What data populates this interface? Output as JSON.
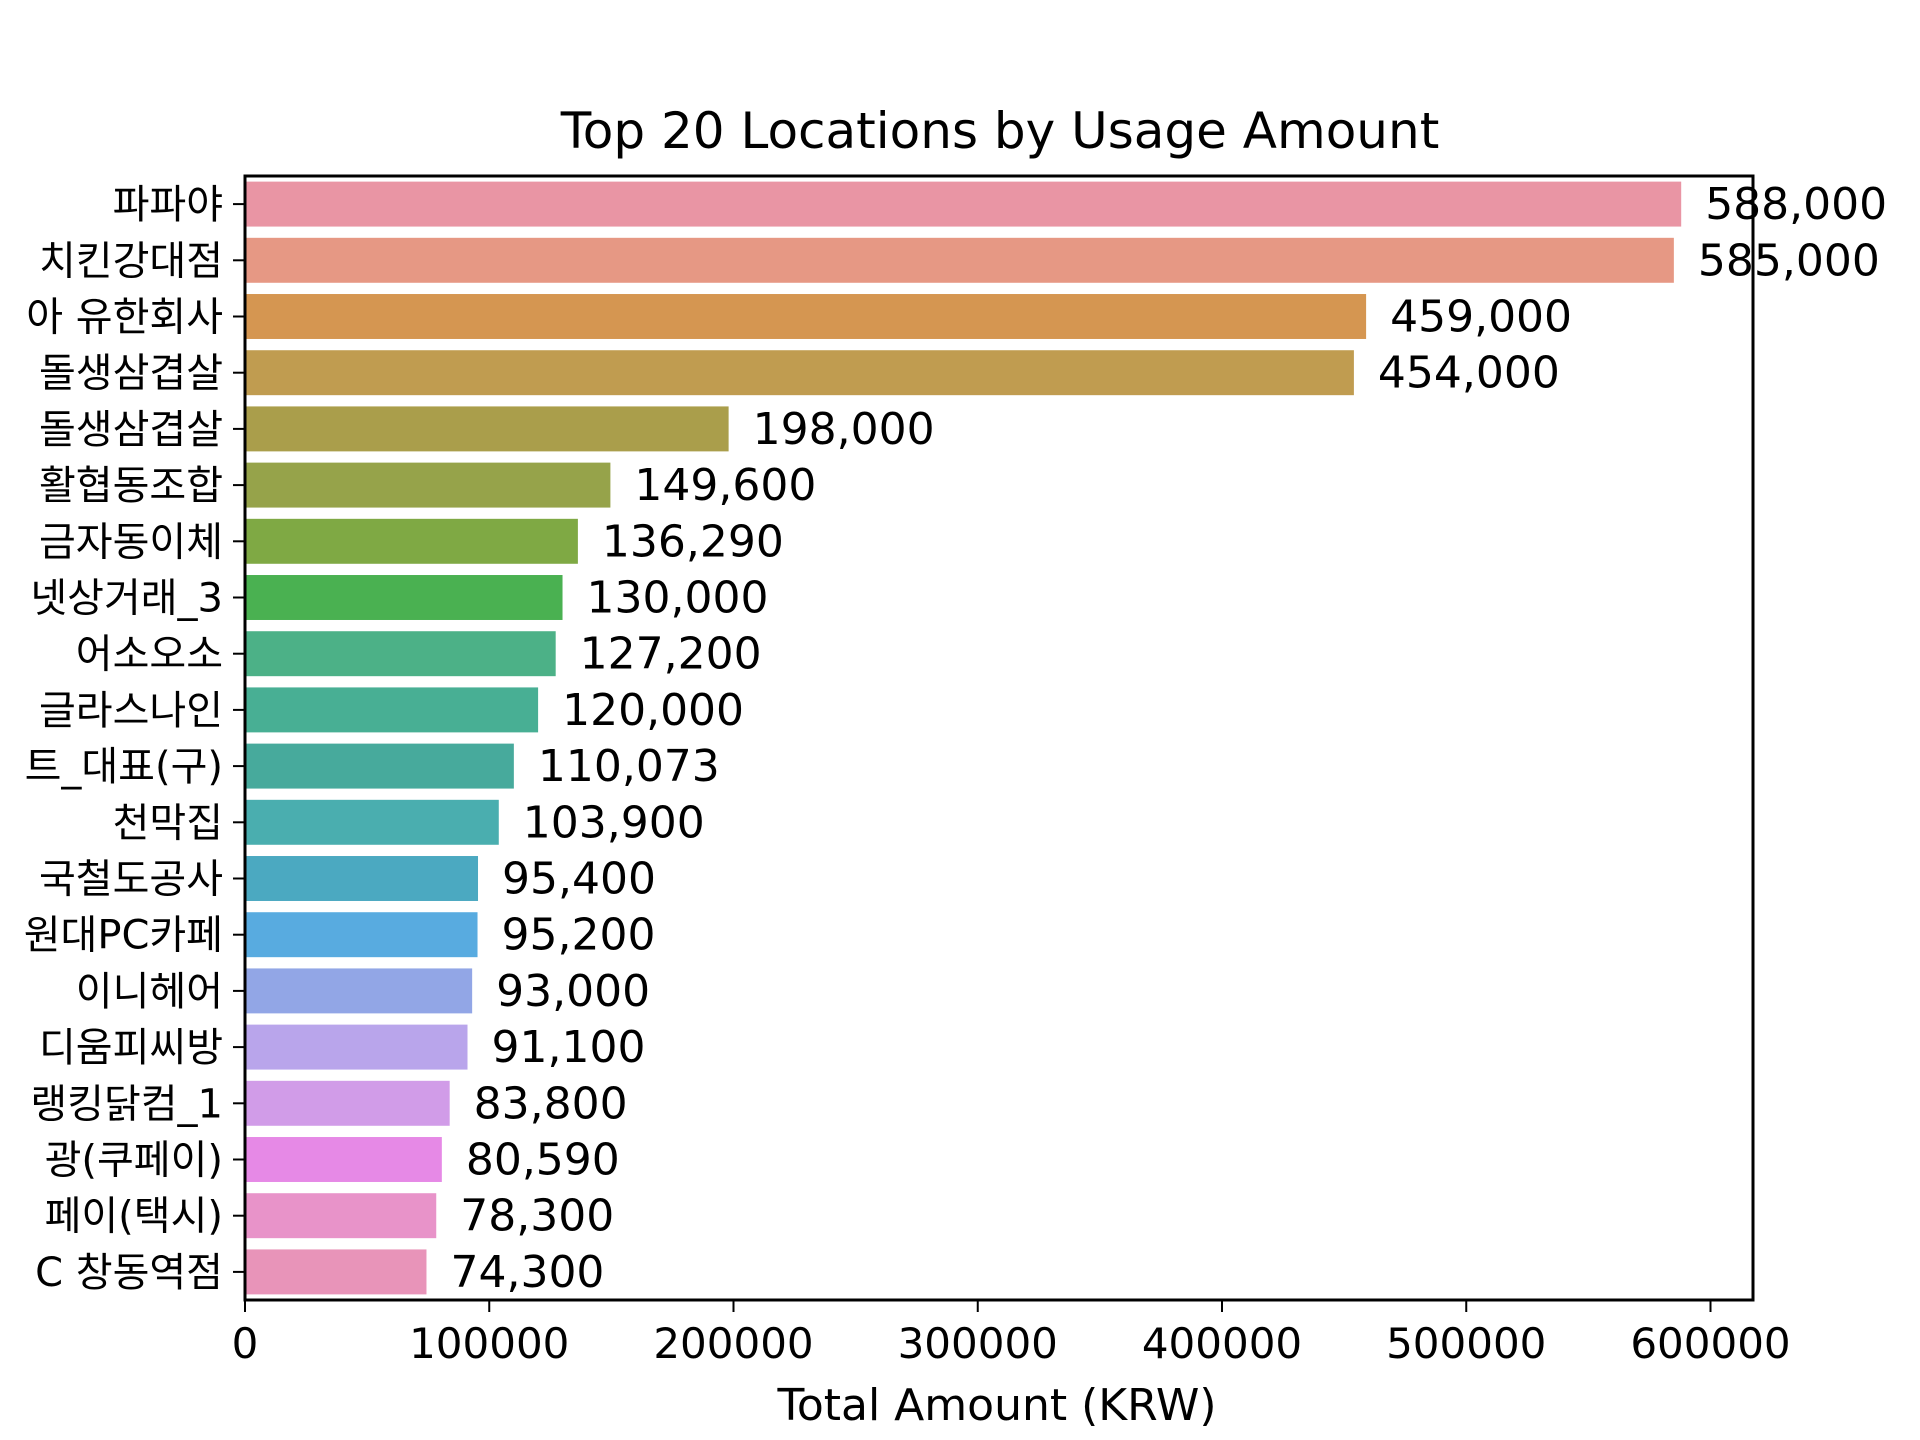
{
  "chart_data": {
    "type": "bar",
    "orientation": "horizontal",
    "title": "Top 20 Locations by Usage Amount",
    "xlabel": "Total Amount (KRW)",
    "ylabel": "",
    "xlim": [
      0,
      617400
    ],
    "xticks": [
      0,
      100000,
      200000,
      300000,
      400000,
      500000,
      600000
    ],
    "xtick_labels": [
      "0",
      "100000",
      "200000",
      "300000",
      "400000",
      "500000",
      "600000"
    ],
    "categories": [
      "파파야",
      "치킨강대점",
      "아 유한회사",
      "돌생삼겹살",
      "돌생삼겹살",
      "활협동조합",
      "금자동이체",
      "넷상거래_3",
      "어소오소",
      "글라스나인",
      "트_대표(구)",
      "천막집",
      "국철도공사",
      "원대PC카페",
      "이니헤어",
      "디움피씨방",
      "랭킹닭컴_1",
      "광(쿠페이)",
      "페이(택시)",
      "C 창동역점"
    ],
    "values": [
      588000,
      585000,
      459000,
      454000,
      198000,
      149600,
      136290,
      130000,
      127200,
      120000,
      110073,
      103900,
      95400,
      95200,
      93000,
      91100,
      83800,
      80590,
      78300,
      74300
    ],
    "value_labels": [
      "588,000",
      "585,000",
      "459,000",
      "454,000",
      "198,000",
      "149,600",
      "136,290",
      "130,000",
      "127,200",
      "120,000",
      "110,073",
      "103,900",
      "95,400",
      "95,200",
      "93,000",
      "91,100",
      "83,800",
      "80,590",
      "78,300",
      "74,300"
    ],
    "colors": [
      "#e995a4",
      "#e69884",
      "#d59651",
      "#c09c50",
      "#aa9e4b",
      "#96a34a",
      "#7fa944",
      "#4ab151",
      "#4cb187",
      "#48af94",
      "#47aa9c",
      "#4aaeaf",
      "#4ba9c1",
      "#58abe0",
      "#92a6e6",
      "#b9a5eb",
      "#d19ce8",
      "#e689e6",
      "#e893c9",
      "#e894b9"
    ],
    "grid": false
  }
}
